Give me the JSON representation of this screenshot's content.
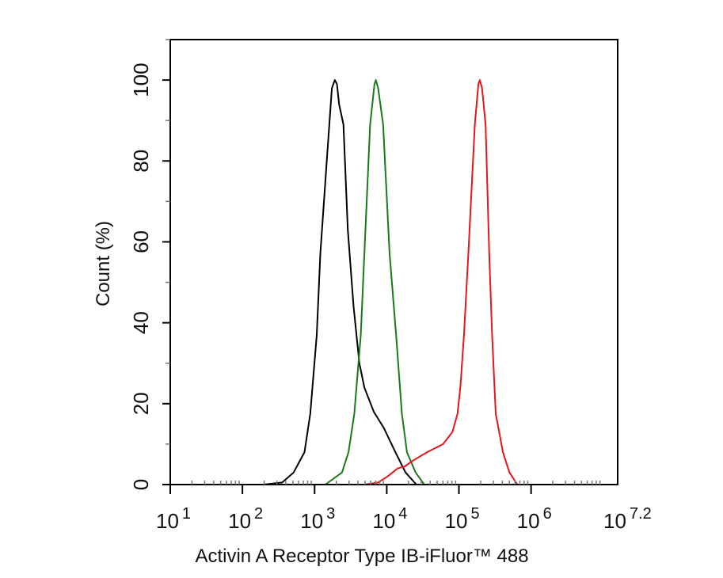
{
  "chart_data": {
    "type": "line",
    "title": "",
    "xlabel": "Activin A Receptor Type IB-iFluor™ 488",
    "ylabel": "Count  (%)",
    "x_scale": "log10",
    "xlim_log10": [
      1,
      7.2
    ],
    "ylim": [
      0,
      110
    ],
    "grid": false,
    "x_ticks": [
      {
        "base": "10",
        "exp": "1",
        "value": 1
      },
      {
        "base": "10",
        "exp": "2",
        "value": 2
      },
      {
        "base": "10",
        "exp": "3",
        "value": 3
      },
      {
        "base": "10",
        "exp": "4",
        "value": 4
      },
      {
        "base": "10",
        "exp": "5",
        "value": 5
      },
      {
        "base": "10",
        "exp": "6",
        "value": 6
      },
      {
        "base": "10",
        "exp": "7.2",
        "value": 7.2
      }
    ],
    "y_ticks": [
      "0",
      "20",
      "40",
      "60",
      "80",
      "100"
    ],
    "series": [
      {
        "color": "#000000",
        "points_log10x_y": [
          [
            2.3,
            0
          ],
          [
            2.55,
            0.5
          ],
          [
            2.71,
            3
          ],
          [
            2.86,
            8
          ],
          [
            2.94,
            17.5
          ],
          [
            3.03,
            37
          ],
          [
            3.08,
            57
          ],
          [
            3.18,
            83
          ],
          [
            3.24,
            98
          ],
          [
            3.28,
            100
          ],
          [
            3.31,
            99
          ],
          [
            3.34,
            94
          ],
          [
            3.4,
            89
          ],
          [
            3.46,
            63
          ],
          [
            3.54,
            44
          ],
          [
            3.62,
            30
          ],
          [
            3.69,
            24
          ],
          [
            3.82,
            18
          ],
          [
            3.96,
            14
          ],
          [
            4.12,
            8
          ],
          [
            4.26,
            3
          ],
          [
            4.41,
            0
          ]
        ]
      },
      {
        "color": "#1a7a1a",
        "points_log10x_y": [
          [
            3.15,
            0
          ],
          [
            3.38,
            3
          ],
          [
            3.47,
            8
          ],
          [
            3.55,
            17.5
          ],
          [
            3.64,
            37
          ],
          [
            3.69,
            57
          ],
          [
            3.77,
            89
          ],
          [
            3.83,
            99
          ],
          [
            3.85,
            100
          ],
          [
            3.88,
            98
          ],
          [
            3.95,
            89
          ],
          [
            4.04,
            57
          ],
          [
            4.13,
            37
          ],
          [
            4.21,
            17.5
          ],
          [
            4.28,
            8
          ],
          [
            4.4,
            3
          ],
          [
            4.52,
            0
          ]
        ]
      },
      {
        "color": "#e8141c",
        "points_log10x_y": [
          [
            3.7,
            0
          ],
          [
            3.88,
            0.5
          ],
          [
            4.01,
            2
          ],
          [
            4.15,
            4
          ],
          [
            4.25,
            4.5
          ],
          [
            4.37,
            6
          ],
          [
            4.56,
            8
          ],
          [
            4.78,
            10
          ],
          [
            4.91,
            13
          ],
          [
            4.98,
            17.5
          ],
          [
            5.02,
            24
          ],
          [
            5.07,
            37
          ],
          [
            5.13,
            57
          ],
          [
            5.22,
            89
          ],
          [
            5.27,
            99
          ],
          [
            5.29,
            100
          ],
          [
            5.32,
            98
          ],
          [
            5.37,
            89
          ],
          [
            5.42,
            57
          ],
          [
            5.46,
            37
          ],
          [
            5.51,
            17.5
          ],
          [
            5.61,
            8
          ],
          [
            5.7,
            3
          ],
          [
            5.81,
            0
          ]
        ]
      }
    ]
  }
}
